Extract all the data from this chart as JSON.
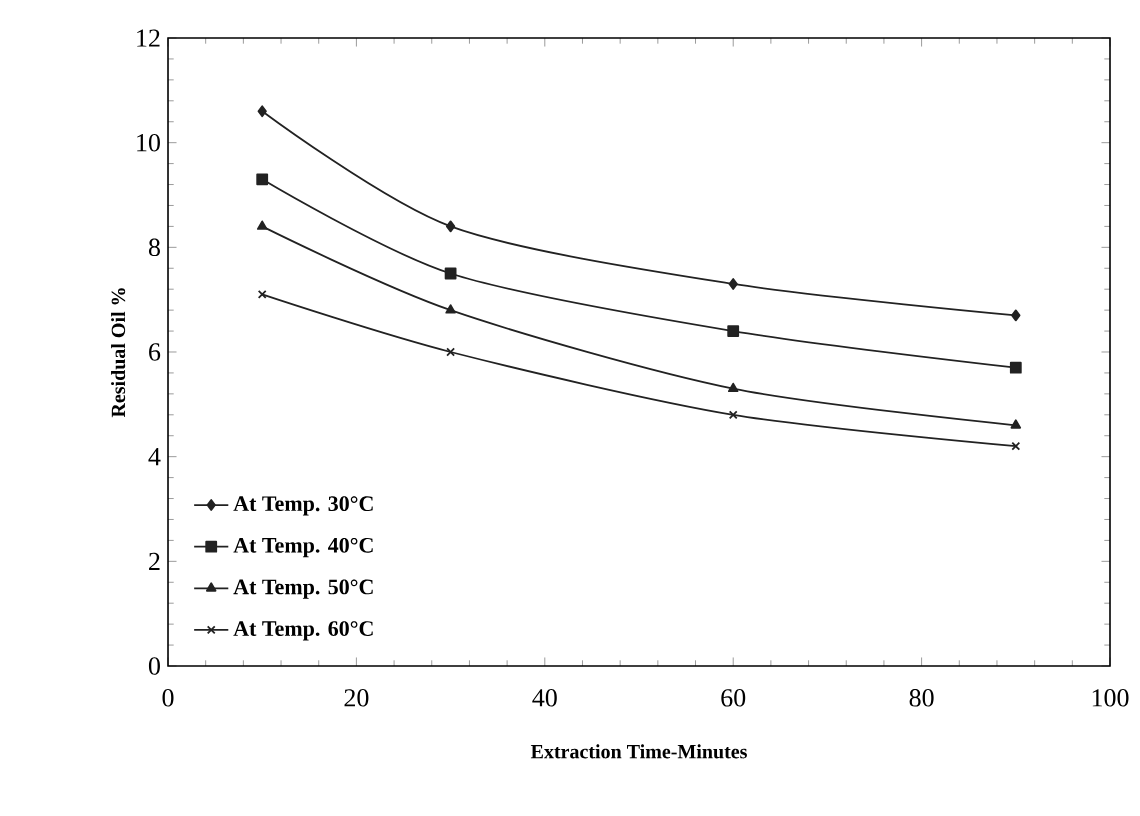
{
  "chart_data": {
    "type": "line",
    "xlabel": "Extraction Time-Minutes",
    "ylabel": "Residual Oil %",
    "x": [
      10,
      30,
      60,
      90
    ],
    "series": [
      {
        "name": "At Temp. 30°C",
        "color": "#222222",
        "marker": "diamond",
        "values": [
          10.6,
          8.4,
          7.3,
          6.7
        ]
      },
      {
        "name": "At Temp. 40°C",
        "color": "#222222",
        "marker": "square",
        "values": [
          9.3,
          7.5,
          6.4,
          5.7
        ]
      },
      {
        "name": "At Temp. 50°C",
        "color": "#222222",
        "marker": "triangle",
        "values": [
          8.4,
          6.8,
          5.3,
          4.6
        ]
      },
      {
        "name": "At Temp. 60°C",
        "color": "#222222",
        "marker": "cross",
        "values": [
          7.1,
          6.0,
          4.8,
          4.2
        ]
      }
    ],
    "xlim": [
      0,
      100
    ],
    "ylim": [
      0,
      12
    ],
    "xticks": [
      0,
      20,
      40,
      60,
      80,
      100
    ],
    "yticks": [
      0,
      2,
      4,
      6,
      8,
      10,
      12
    ],
    "legend": "bottom left",
    "line_style": "solid"
  }
}
